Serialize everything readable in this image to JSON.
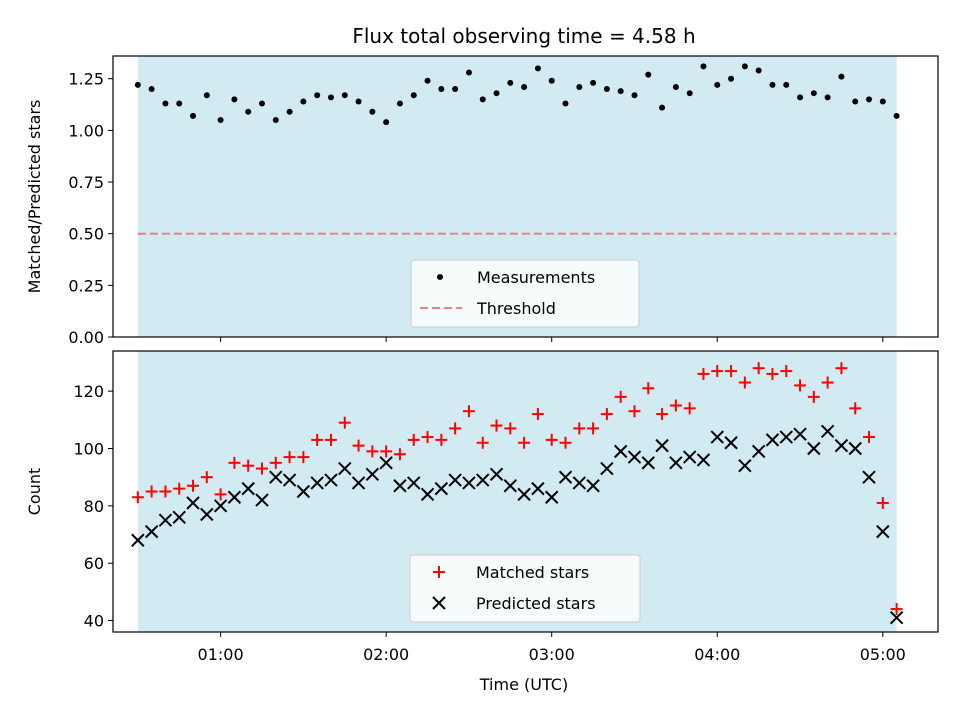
{
  "figure": {
    "title": "Flux total observing time = 4.58 h",
    "xlabel": "Time (UTC)"
  },
  "chart_data": [
    {
      "type": "scatter",
      "panel": "top",
      "ylabel": "Matched/Predicted stars",
      "xlim": [
        "00:21",
        "05:20"
      ],
      "ylim": [
        0,
        1.36
      ],
      "yticks": [
        "0.00",
        "0.25",
        "0.50",
        "0.75",
        "1.00",
        "1.25"
      ],
      "ytick_values": [
        0,
        0.25,
        0.5,
        0.75,
        1.0,
        1.25
      ],
      "shaded_region": {
        "start": "00:30",
        "end": "05:05",
        "color": "#add8e6"
      },
      "threshold": {
        "label": "Threshold",
        "value": 0.5,
        "color": "#f08080",
        "style": "dashed"
      },
      "legend_position": "lower center",
      "series": [
        {
          "name": "Measurements",
          "marker": "dot",
          "color": "#000000",
          "x": [
            "00:30",
            "00:35",
            "00:40",
            "00:45",
            "00:50",
            "00:55",
            "01:00",
            "01:05",
            "01:10",
            "01:15",
            "01:20",
            "01:25",
            "01:30",
            "01:35",
            "01:40",
            "01:45",
            "01:50",
            "01:55",
            "02:00",
            "02:05",
            "02:10",
            "02:15",
            "02:20",
            "02:25",
            "02:30",
            "02:35",
            "02:40",
            "02:45",
            "02:50",
            "02:55",
            "03:00",
            "03:05",
            "03:10",
            "03:15",
            "03:20",
            "03:25",
            "03:30",
            "03:35",
            "03:40",
            "03:45",
            "03:50",
            "03:55",
            "04:00",
            "04:05",
            "04:10",
            "04:15",
            "04:20",
            "04:25",
            "04:30",
            "04:35",
            "04:40",
            "04:45",
            "04:50",
            "04:55",
            "05:00",
            "05:05"
          ],
          "y": [
            1.22,
            1.2,
            1.13,
            1.13,
            1.07,
            1.17,
            1.05,
            1.15,
            1.09,
            1.13,
            1.05,
            1.09,
            1.14,
            1.17,
            1.16,
            1.17,
            1.14,
            1.09,
            1.04,
            1.13,
            1.17,
            1.24,
            1.2,
            1.2,
            1.28,
            1.15,
            1.18,
            1.23,
            1.21,
            1.3,
            1.24,
            1.13,
            1.21,
            1.23,
            1.2,
            1.19,
            1.17,
            1.27,
            1.11,
            1.21,
            1.18,
            1.31,
            1.22,
            1.25,
            1.31,
            1.29,
            1.22,
            1.22,
            1.16,
            1.18,
            1.16,
            1.26,
            1.14,
            1.15,
            1.14,
            1.07
          ]
        }
      ]
    },
    {
      "type": "scatter",
      "panel": "bottom",
      "ylabel": "Count",
      "xlim": [
        "00:21",
        "05:20"
      ],
      "ylim": [
        36,
        134
      ],
      "yticks": [
        "40",
        "60",
        "80",
        "100",
        "120"
      ],
      "ytick_values": [
        40,
        60,
        80,
        100,
        120
      ],
      "xticks": [
        "01:00",
        "02:00",
        "03:00",
        "04:00",
        "05:00"
      ],
      "shaded_region": {
        "start": "00:30",
        "end": "05:05",
        "color": "#add8e6"
      },
      "legend_position": "lower center",
      "series": [
        {
          "name": "Matched stars",
          "marker": "plus",
          "color": "#ff0000",
          "x": [
            "00:30",
            "00:35",
            "00:40",
            "00:45",
            "00:50",
            "00:55",
            "01:00",
            "01:05",
            "01:10",
            "01:15",
            "01:20",
            "01:25",
            "01:30",
            "01:35",
            "01:40",
            "01:45",
            "01:50",
            "01:55",
            "02:00",
            "02:05",
            "02:10",
            "02:15",
            "02:20",
            "02:25",
            "02:30",
            "02:35",
            "02:40",
            "02:45",
            "02:50",
            "02:55",
            "03:00",
            "03:05",
            "03:10",
            "03:15",
            "03:20",
            "03:25",
            "03:30",
            "03:35",
            "03:40",
            "03:45",
            "03:50",
            "03:55",
            "04:00",
            "04:05",
            "04:10",
            "04:15",
            "04:20",
            "04:25",
            "04:30",
            "04:35",
            "04:40",
            "04:45",
            "04:50",
            "04:55",
            "05:00",
            "05:05"
          ],
          "y": [
            83,
            85,
            85,
            86,
            87,
            90,
            84,
            95,
            94,
            93,
            95,
            97,
            97,
            103,
            103,
            109,
            101,
            99,
            99,
            98,
            103,
            104,
            103,
            107,
            113,
            102,
            108,
            107,
            102,
            112,
            103,
            102,
            107,
            107,
            112,
            118,
            113,
            121,
            112,
            115,
            114,
            126,
            127,
            127,
            123,
            128,
            126,
            127,
            122,
            118,
            123,
            128,
            114,
            104,
            81,
            44
          ]
        },
        {
          "name": "Predicted stars",
          "marker": "x",
          "color": "#000000",
          "x": [
            "00:30",
            "00:35",
            "00:40",
            "00:45",
            "00:50",
            "00:55",
            "01:00",
            "01:05",
            "01:10",
            "01:15",
            "01:20",
            "01:25",
            "01:30",
            "01:35",
            "01:40",
            "01:45",
            "01:50",
            "01:55",
            "02:00",
            "02:05",
            "02:10",
            "02:15",
            "02:20",
            "02:25",
            "02:30",
            "02:35",
            "02:40",
            "02:45",
            "02:50",
            "02:55",
            "03:00",
            "03:05",
            "03:10",
            "03:15",
            "03:20",
            "03:25",
            "03:30",
            "03:35",
            "03:40",
            "03:45",
            "03:50",
            "03:55",
            "04:00",
            "04:05",
            "04:10",
            "04:15",
            "04:20",
            "04:25",
            "04:30",
            "04:35",
            "04:40",
            "04:45",
            "04:50",
            "04:55",
            "05:00",
            "05:05"
          ],
          "y": [
            68,
            71,
            75,
            76,
            81,
            77,
            80,
            83,
            86,
            82,
            90,
            89,
            85,
            88,
            89,
            93,
            88,
            91,
            95,
            87,
            88,
            84,
            86,
            89,
            88,
            89,
            91,
            87,
            84,
            86,
            83,
            90,
            88,
            87,
            93,
            99,
            97,
            95,
            101,
            95,
            97,
            96,
            104,
            102,
            94,
            99,
            103,
            104,
            105,
            100,
            106,
            101,
            100,
            90,
            71,
            41
          ]
        }
      ]
    }
  ]
}
